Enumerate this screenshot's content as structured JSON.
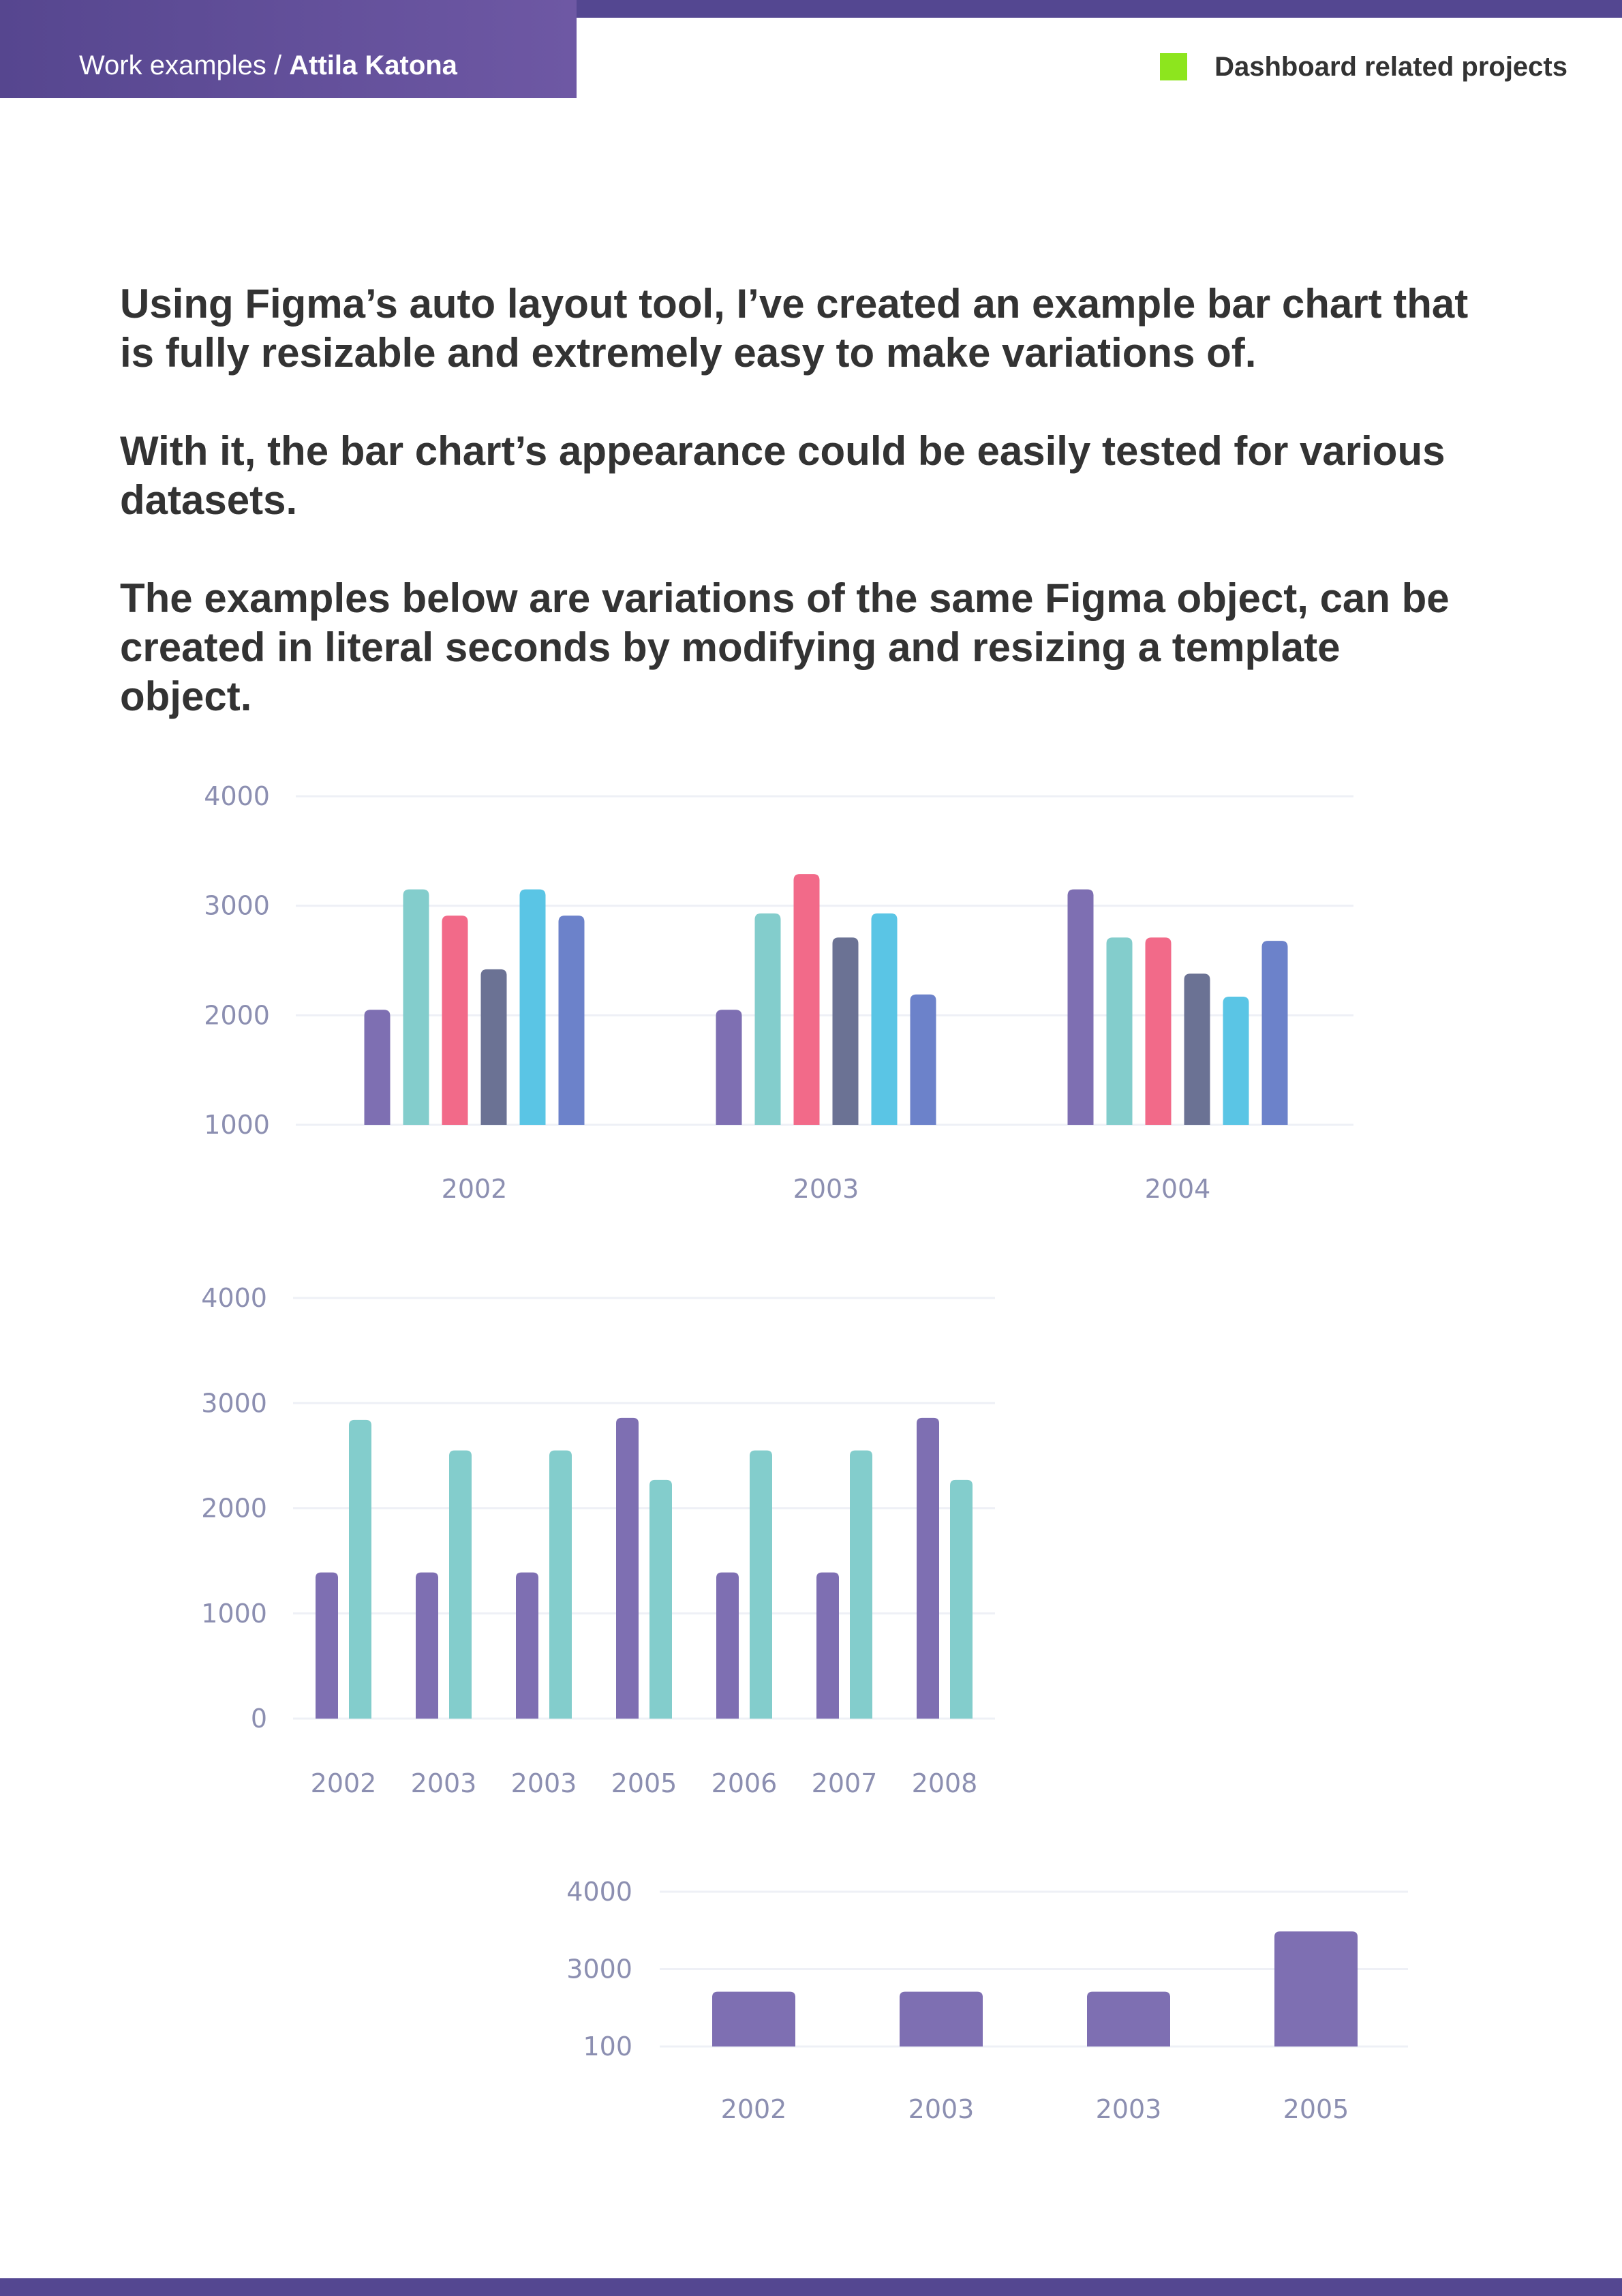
{
  "header": {
    "breadcrumb_section": "Work examples / ",
    "breadcrumb_author": "Attila Katona",
    "category_label": "Dashboard related projects",
    "category_color": "#8de51e"
  },
  "intro": {
    "paragraphs": [
      "Using Figma’s auto layout tool, I’ve created an example bar chart that is fully resizable and extremely easy to make variations of.",
      "With it, the bar chart’s appearance could be easily tested for various datasets.",
      "The examples below are variations of the same Figma object, can be created in literal seconds by modifying and resizing a template object."
    ]
  },
  "colors": {
    "axis_label": "#8c8fb1",
    "gridline": "#eef0f6",
    "accent_bar": "#544791"
  },
  "chart_data": [
    {
      "type": "bar",
      "categories": [
        "2002",
        "2003",
        "2004"
      ],
      "series": [
        {
          "color": "#7e6fb2",
          "values": [
            2050,
            2050,
            3150
          ]
        },
        {
          "color": "#83cdcc",
          "values": [
            3150,
            2930,
            2710
          ]
        },
        {
          "color": "#f26a89",
          "values": [
            2910,
            3290,
            2710
          ]
        },
        {
          "color": "#6b7294",
          "values": [
            2420,
            2710,
            2380
          ]
        },
        {
          "color": "#5ac5e5",
          "values": [
            3150,
            2930,
            2170
          ]
        },
        {
          "color": "#6c82ca",
          "values": [
            2910,
            2190,
            2680
          ]
        }
      ],
      "yticks": [
        "1000",
        "2000",
        "3000",
        "4000"
      ],
      "ylim": [
        1000,
        4000
      ],
      "grid": true
    },
    {
      "type": "bar",
      "categories": [
        "2002",
        "2003",
        "2003",
        "2005",
        "2006",
        "2007",
        "2008"
      ],
      "series": [
        {
          "color": "#7e6fb2",
          "values": [
            1390,
            1390,
            1390,
            2860,
            1390,
            1390,
            2860
          ]
        },
        {
          "color": "#83cdcc",
          "values": [
            2840,
            2550,
            2550,
            2270,
            2550,
            2550,
            2270
          ]
        }
      ],
      "yticks": [
        "0",
        "1000",
        "2000",
        "3000",
        "4000"
      ],
      "ylim": [
        0,
        4000
      ],
      "grid": true
    },
    {
      "type": "bar",
      "categories": [
        "2002",
        "2003",
        "2003",
        "2005"
      ],
      "series": [
        {
          "color": "#7e6fb2",
          "values": [
            1480,
            1480,
            1480,
            3000
          ]
        }
      ],
      "yticks": [
        "100",
        "3000",
        "4000"
      ],
      "ylim": [
        100,
        4000
      ],
      "grid": true
    }
  ]
}
